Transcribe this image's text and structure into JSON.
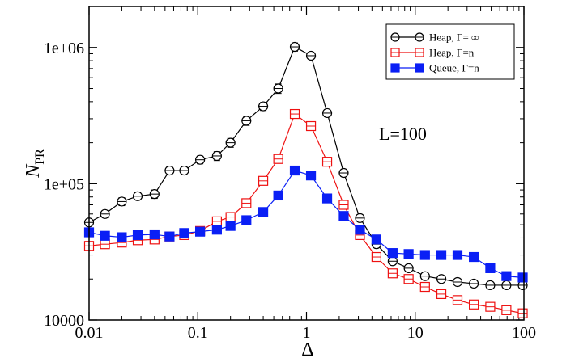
{
  "chart_data": {
    "type": "line",
    "xscale": "log",
    "yscale": "log",
    "xlim": [
      0.01,
      100
    ],
    "ylim": [
      10000,
      2000000
    ],
    "xlabel": "Δ",
    "ylabel": "N",
    "ylabel_sub": "PR",
    "xticks": [
      {
        "value": 0.01,
        "label": "0.01"
      },
      {
        "value": 0.1,
        "label": "0.1"
      },
      {
        "value": 1,
        "label": "1"
      },
      {
        "value": 10,
        "label": "10"
      },
      {
        "value": 100,
        "label": "100"
      }
    ],
    "yticks": [
      {
        "value": 10000,
        "label": "10000"
      },
      {
        "value": 100000,
        "label": "1e+05"
      },
      {
        "value": 1000000,
        "label": "1e+06"
      }
    ],
    "annotation": "L=100",
    "legend_position": "top-right",
    "series": [
      {
        "name": "Heap, Γ= ∞",
        "color": "#000000",
        "marker": "circle",
        "filled": false,
        "x": [
          0.01,
          0.014,
          0.02,
          0.028,
          0.04,
          0.055,
          0.075,
          0.105,
          0.15,
          0.2,
          0.28,
          0.4,
          0.55,
          0.78,
          1.1,
          1.55,
          2.2,
          3.1,
          4.4,
          6.2,
          8.7,
          12.3,
          17.4,
          24.5,
          34.6,
          49,
          69,
          97.5
        ],
        "y": [
          52000,
          60000,
          74000,
          81000,
          84000,
          125000,
          125000,
          150000,
          160000,
          200000,
          290000,
          370000,
          500000,
          1010000,
          870000,
          330000,
          120000,
          56000,
          36000,
          27000,
          24000,
          21000,
          20000,
          19000,
          18500,
          18000,
          18000,
          18000
        ],
        "err": [
          3000,
          3500,
          5000,
          5000,
          6000,
          9000,
          9000,
          10000,
          12000,
          15000,
          22000,
          25000,
          40000,
          70000,
          50000,
          20000,
          7000,
          3000,
          2000,
          1500,
          1200,
          1000,
          1000,
          900,
          900,
          900,
          900,
          900
        ]
      },
      {
        "name": "Heap, Γ=n",
        "color": "#ee1111",
        "marker": "square",
        "filled": false,
        "x": [
          0.01,
          0.014,
          0.02,
          0.028,
          0.04,
          0.055,
          0.075,
          0.105,
          0.15,
          0.2,
          0.28,
          0.4,
          0.55,
          0.78,
          1.1,
          1.55,
          2.2,
          3.1,
          4.4,
          6.2,
          8.7,
          12.3,
          17.4,
          24.5,
          34.6,
          49,
          69,
          97.5
        ],
        "y": [
          35000,
          36000,
          37000,
          38500,
          39000,
          41000,
          42000,
          45000,
          53000,
          57000,
          72000,
          105000,
          152000,
          325000,
          265000,
          145000,
          70000,
          42000,
          29000,
          22000,
          20000,
          17500,
          15500,
          14000,
          13000,
          12500,
          11800,
          11200
        ]
      },
      {
        "name": "Queue, Γ=n",
        "color": "#0a1ff5",
        "marker": "square",
        "filled": true,
        "x": [
          0.01,
          0.014,
          0.02,
          0.028,
          0.04,
          0.055,
          0.075,
          0.105,
          0.15,
          0.2,
          0.28,
          0.4,
          0.55,
          0.78,
          1.1,
          1.55,
          2.2,
          3.1,
          4.4,
          6.2,
          8.7,
          12.3,
          17.4,
          24.5,
          34.6,
          49,
          69,
          97.5
        ],
        "y": [
          44000,
          41500,
          40500,
          42000,
          42500,
          41000,
          43500,
          44500,
          46000,
          49000,
          54000,
          62000,
          82000,
          125000,
          115000,
          78000,
          58000,
          46000,
          39000,
          31000,
          30500,
          30000,
          30000,
          30000,
          29000,
          24000,
          21000,
          20500
        ]
      }
    ]
  }
}
